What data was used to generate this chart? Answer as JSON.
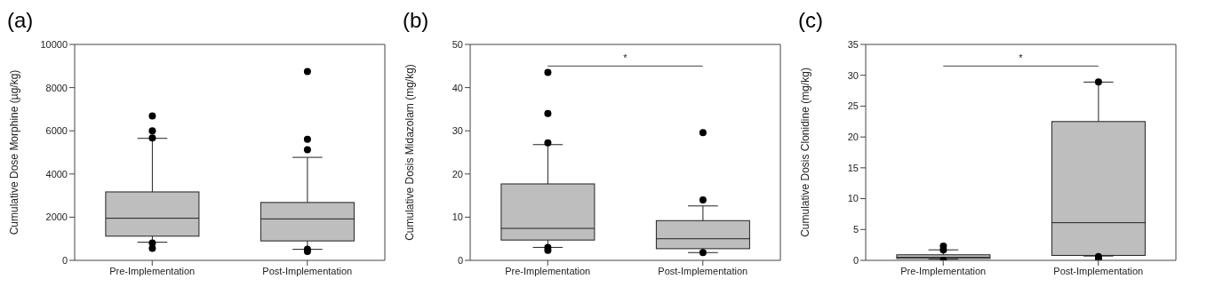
{
  "chart_data": [
    {
      "type": "box",
      "title": "(a)",
      "ylabel": "Cumulative Dose Morphine (µg/kg)",
      "categories": [
        "Pre-Implementation",
        "Post-Implementation"
      ],
      "color": "#bebebe",
      "ylim": [
        0,
        10000
      ],
      "yticks": [
        0,
        2000,
        4000,
        6000,
        8000,
        10000
      ],
      "grid": false,
      "boxes": [
        {
          "low": 840,
          "q1": 1120,
          "median": 1950,
          "q3": 3170,
          "high": 5650,
          "outliers": [
            6690,
            6000,
            5670,
            800,
            560
          ]
        },
        {
          "low": 510,
          "q1": 900,
          "median": 1920,
          "q3": 2680,
          "high": 4770,
          "outliers": [
            8750,
            5610,
            5120,
            510,
            410
          ]
        }
      ]
    },
    {
      "type": "box",
      "title": "(b)",
      "ylabel": "Cumulative Dosis Midazolam (mg/kg)",
      "categories": [
        "Pre-Implementation",
        "Post-Implementation"
      ],
      "color": "#bebebe",
      "ylim": [
        0,
        50
      ],
      "yticks": [
        0,
        10,
        20,
        30,
        40,
        50
      ],
      "grid": false,
      "annotations": [
        "*"
      ],
      "boxes": [
        {
          "low": 3.0,
          "q1": 4.7,
          "median": 7.4,
          "q3": 17.7,
          "high": 26.8,
          "outliers": [
            43.5,
            34.0,
            27.2,
            3.0,
            2.3
          ]
        },
        {
          "low": 1.8,
          "q1": 2.7,
          "median": 5.0,
          "q3": 9.2,
          "high": 12.6,
          "outliers": [
            29.6,
            14.0,
            1.8
          ]
        }
      ]
    },
    {
      "type": "box",
      "title": "(c)",
      "ylabel": "Cumulative Dosis Clonidine (mg/kg)",
      "categories": [
        "Pre-Implementation",
        "Post-Implementation"
      ],
      "color": "#bebebe",
      "ylim": [
        0,
        35
      ],
      "yticks": [
        0,
        5,
        10,
        15,
        20,
        25,
        30,
        35
      ],
      "grid": false,
      "annotations": [
        "*"
      ],
      "boxes": [
        {
          "low": 0.2,
          "q1": 0.3,
          "median": 0.5,
          "q3": 0.9,
          "high": 1.7,
          "outliers": [
            2.3,
            1.7,
            0.0
          ]
        },
        {
          "low": 0.7,
          "q1": 0.8,
          "median": 6.1,
          "q3": 22.5,
          "high": 28.9,
          "outliers": [
            28.9,
            0.6,
            0.2
          ]
        }
      ]
    }
  ]
}
